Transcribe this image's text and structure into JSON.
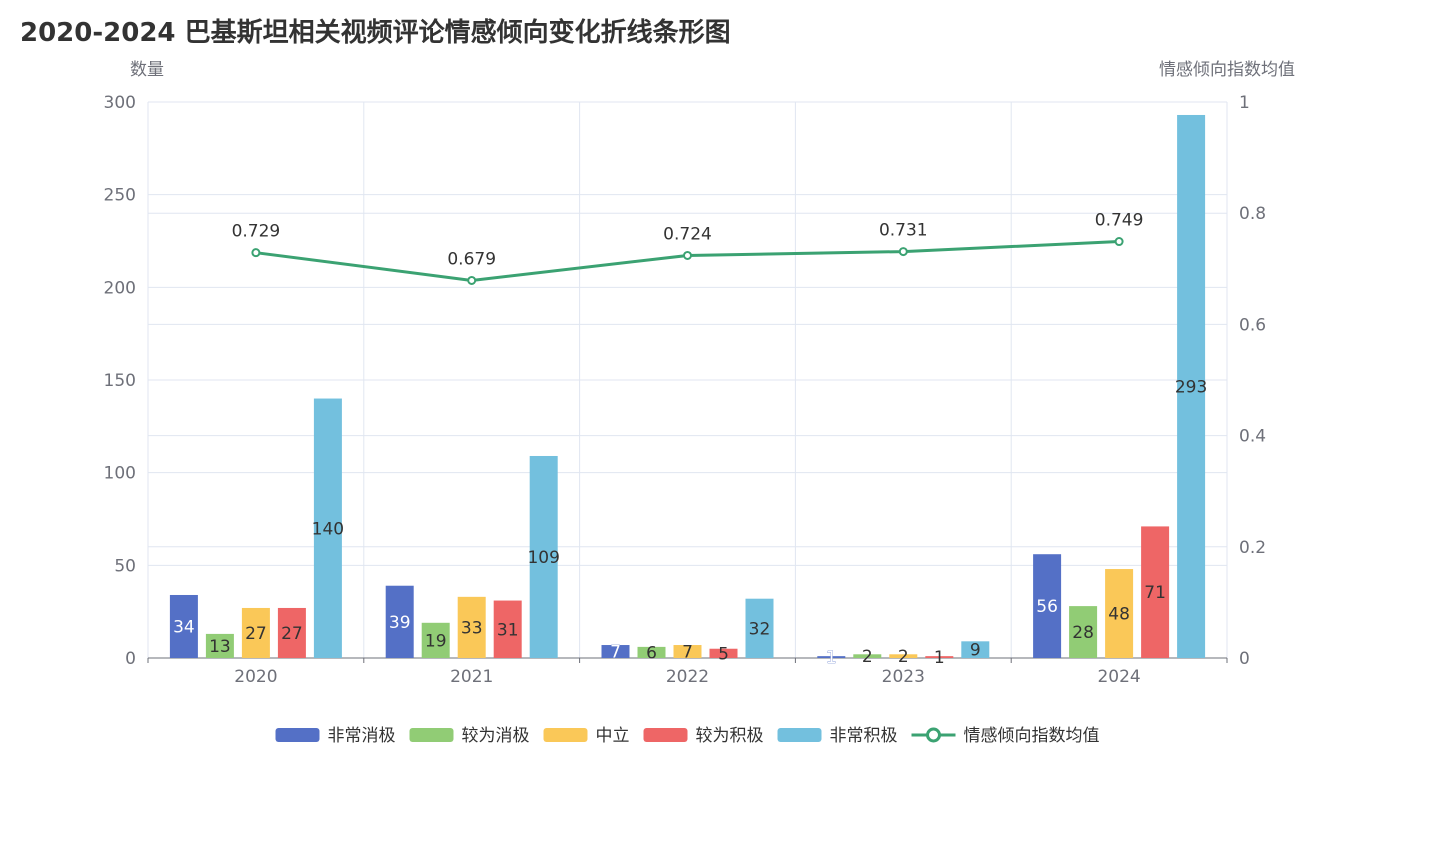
{
  "title": "2020-2024 巴基斯坦相关视频评论情感倾向变化折线条形图",
  "chart_data": {
    "type": "bar",
    "title": "2020-2024 巴基斯坦相关视频评论情感倾向变化折线条形图",
    "categories": [
      "2020",
      "2021",
      "2022",
      "2023",
      "2024"
    ],
    "y_left": {
      "label": "数量",
      "range": [
        0,
        300
      ],
      "ticks": [
        "0",
        "50",
        "100",
        "150",
        "200",
        "250",
        "300"
      ]
    },
    "y_right": {
      "label": "情感倾向指数均值",
      "range": [
        0,
        1
      ],
      "ticks": [
        "0",
        "0.2",
        "0.4",
        "0.6",
        "0.8",
        "1"
      ]
    },
    "grid": true,
    "legend_position": "bottom",
    "series": [
      {
        "name": "非常消极",
        "type": "bar",
        "color": "#5470c6",
        "values": [
          34,
          39,
          7,
          1,
          56
        ],
        "labels": [
          "34",
          "39",
          "7",
          "1",
          "56"
        ]
      },
      {
        "name": "较为消极",
        "type": "bar",
        "color": "#91cc75",
        "values": [
          13,
          19,
          6,
          2,
          28
        ],
        "labels": [
          "13",
          "19",
          "6",
          "2",
          "28"
        ]
      },
      {
        "name": "中立",
        "type": "bar",
        "color": "#fac858",
        "values": [
          27,
          33,
          7,
          2,
          48
        ],
        "labels": [
          "27",
          "33",
          "7",
          "2",
          "48"
        ]
      },
      {
        "name": "较为积极",
        "type": "bar",
        "color": "#ee6666",
        "values": [
          27,
          31,
          5,
          1,
          71
        ],
        "labels": [
          "27",
          "31",
          "5",
          "1",
          "71"
        ]
      },
      {
        "name": "非常积极",
        "type": "bar",
        "color": "#73c0de",
        "values": [
          140,
          109,
          32,
          9,
          293
        ],
        "labels": [
          "140",
          "109",
          "32",
          "9",
          "293"
        ]
      },
      {
        "name": "情感倾向指数均值",
        "type": "line",
        "color": "#3ba272",
        "values": [
          0.729,
          0.679,
          0.724,
          0.731,
          0.749
        ],
        "labels": [
          "0.729",
          "0.679",
          "0.724",
          "0.731",
          "0.749"
        ]
      }
    ]
  }
}
